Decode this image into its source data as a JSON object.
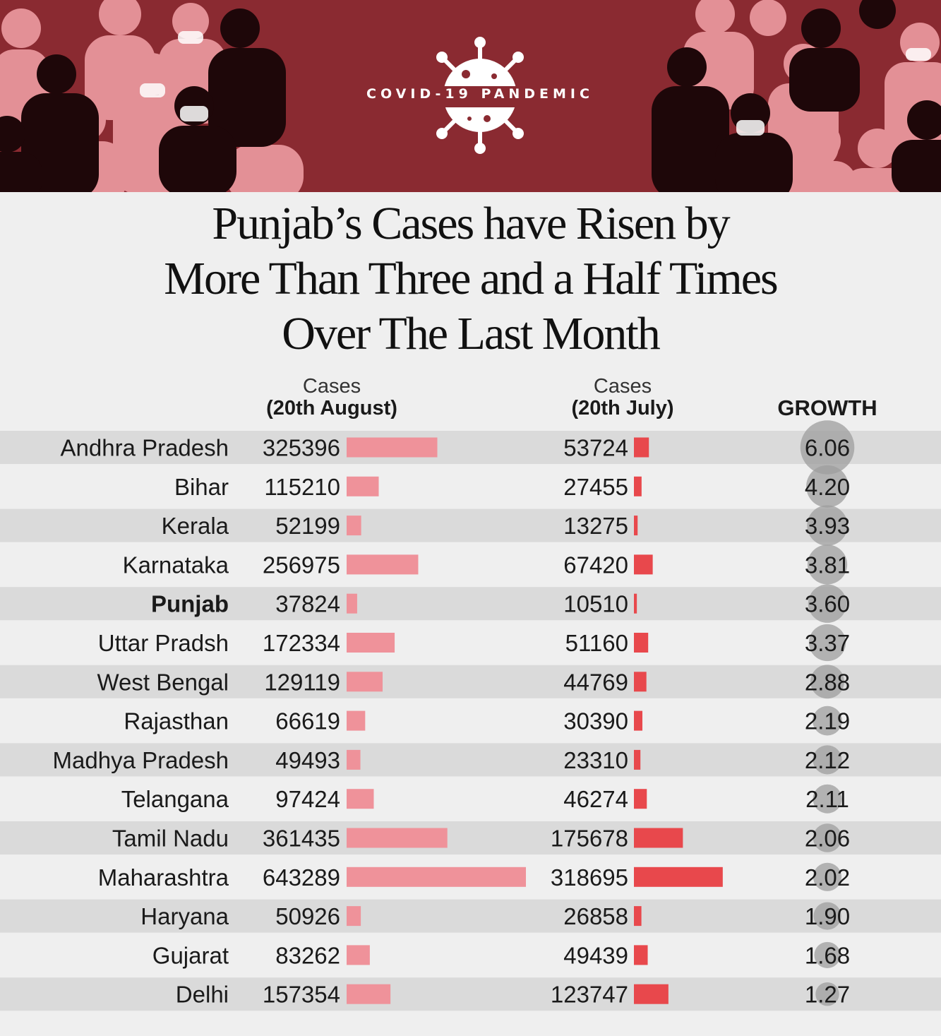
{
  "banner": {
    "label": "COVID-19 PANDEMIC"
  },
  "title": {
    "line1": "Punjab’s Cases have Risen by",
    "line2": "More Than Three and a Half Times",
    "line3": "Over The Last Month"
  },
  "headers": {
    "aug_line1": "Cases",
    "aug_line2": "(20th August)",
    "jul_line1": "Cases",
    "jul_line2": "(20th July)",
    "growth": "GROWTH"
  },
  "colors": {
    "banner": "#8a2a31",
    "aug_bar": "#ef929a",
    "jul_bar": "#e8484c",
    "growth_circle": "#9e9e9e",
    "stripe": "#dadada"
  },
  "chart_data": {
    "type": "bar",
    "categories": [
      "Andhra Pradesh",
      "Bihar",
      "Kerala",
      "Karnataka",
      "Punjab",
      "Uttar Pradsh",
      "West Bengal",
      "Rajasthan",
      "Madhya Pradesh",
      "Telangana",
      "Tamil Nadu",
      "Maharashtra",
      "Haryana",
      "Gujarat",
      "Delhi"
    ],
    "highlight": "Punjab",
    "series": [
      {
        "name": "Cases (20th August)",
        "values": [
          325396,
          115210,
          52199,
          256975,
          37824,
          172334,
          129119,
          66619,
          49493,
          97424,
          361435,
          643289,
          50926,
          83262,
          157354
        ]
      },
      {
        "name": "Cases (20th July)",
        "values": [
          53724,
          27455,
          13275,
          67420,
          10510,
          51160,
          44769,
          30390,
          23310,
          46274,
          175678,
          318695,
          26858,
          49439,
          123747
        ]
      }
    ],
    "growth": [
      "6.06",
      "4.20",
      "3.93",
      "3.81",
      "3.60",
      "3.37",
      "2.88",
      "2.19",
      "2.12",
      "2.11",
      "2.06",
      "2.02",
      "1.90",
      "1.68",
      "1.27"
    ]
  }
}
